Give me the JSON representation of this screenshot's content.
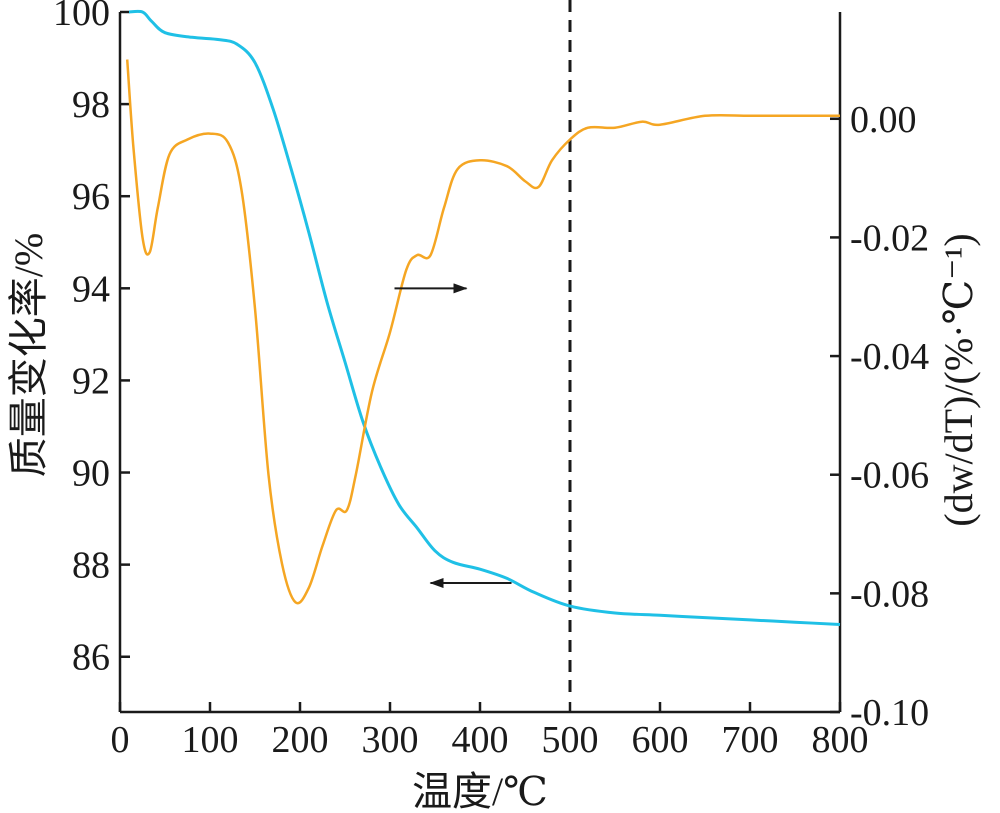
{
  "chart_data": {
    "type": "line",
    "title": "",
    "xlabel": "温度/℃",
    "ylabel_left": "质量变化率/%",
    "ylabel_right": "(dw/dT)/(%·℃⁻¹)",
    "xlim": [
      0,
      800
    ],
    "ylim_left": [
      84.8,
      100
    ],
    "ylim_right": [
      -0.1,
      0.018
    ],
    "x_ticks": [
      "0",
      "100",
      "200",
      "300",
      "400",
      "500",
      "600",
      "700",
      "800"
    ],
    "y_left_ticks": [
      "86",
      "88",
      "90",
      "92",
      "94",
      "96",
      "98",
      "100"
    ],
    "y_right_ticks": [
      "0.00",
      "-0.02",
      "-0.04",
      "-0.06",
      "-0.08",
      "-0.10"
    ],
    "grid": false,
    "vertical_marker": {
      "x": 500,
      "style": "dashed"
    },
    "series": [
      {
        "axis": "left",
        "color": "#1fc0e6",
        "points": [
          [
            10,
            100.0
          ],
          [
            25,
            100.0
          ],
          [
            35,
            99.8
          ],
          [
            50,
            99.55
          ],
          [
            80,
            99.45
          ],
          [
            110,
            99.4
          ],
          [
            130,
            99.3
          ],
          [
            150,
            98.9
          ],
          [
            170,
            97.9
          ],
          [
            190,
            96.6
          ],
          [
            210,
            95.2
          ],
          [
            230,
            93.7
          ],
          [
            250,
            92.4
          ],
          [
            270,
            91.1
          ],
          [
            290,
            90.1
          ],
          [
            310,
            89.3
          ],
          [
            330,
            88.8
          ],
          [
            350,
            88.3
          ],
          [
            370,
            88.05
          ],
          [
            400,
            87.9
          ],
          [
            430,
            87.7
          ],
          [
            460,
            87.4
          ],
          [
            500,
            87.1
          ],
          [
            550,
            86.95
          ],
          [
            600,
            86.9
          ],
          [
            650,
            86.85
          ],
          [
            700,
            86.8
          ],
          [
            750,
            86.75
          ],
          [
            800,
            86.7
          ]
        ]
      },
      {
        "axis": "right",
        "color": "#f5a623",
        "points": [
          [
            8,
            0.01
          ],
          [
            15,
            -0.005
          ],
          [
            25,
            -0.02
          ],
          [
            33,
            -0.0225
          ],
          [
            42,
            -0.015
          ],
          [
            55,
            -0.006
          ],
          [
            75,
            -0.0035
          ],
          [
            100,
            -0.0025
          ],
          [
            120,
            -0.004
          ],
          [
            135,
            -0.012
          ],
          [
            150,
            -0.032
          ],
          [
            165,
            -0.06
          ],
          [
            180,
            -0.075
          ],
          [
            195,
            -0.0815
          ],
          [
            210,
            -0.079
          ],
          [
            225,
            -0.072
          ],
          [
            240,
            -0.066
          ],
          [
            252,
            -0.066
          ],
          [
            262,
            -0.06
          ],
          [
            280,
            -0.046
          ],
          [
            300,
            -0.036
          ],
          [
            318,
            -0.0255
          ],
          [
            330,
            -0.023
          ],
          [
            345,
            -0.023
          ],
          [
            360,
            -0.015
          ],
          [
            375,
            -0.0085
          ],
          [
            400,
            -0.007
          ],
          [
            430,
            -0.008
          ],
          [
            450,
            -0.0105
          ],
          [
            465,
            -0.0115
          ],
          [
            480,
            -0.007
          ],
          [
            500,
            -0.0035
          ],
          [
            520,
            -0.0015
          ],
          [
            550,
            -0.0015
          ],
          [
            580,
            -0.0005
          ],
          [
            600,
            -0.001
          ],
          [
            650,
            0.0005
          ],
          [
            700,
            0.0005
          ],
          [
            750,
            0.0005
          ],
          [
            800,
            0.0005
          ]
        ]
      }
    ],
    "annotations": [
      {
        "type": "arrow",
        "direction": "right",
        "from": [
          305,
          94.0
        ],
        "to": [
          385,
          94.0
        ]
      },
      {
        "type": "arrow",
        "direction": "left",
        "from": [
          435,
          87.6
        ],
        "to": [
          345,
          87.6
        ]
      }
    ]
  }
}
